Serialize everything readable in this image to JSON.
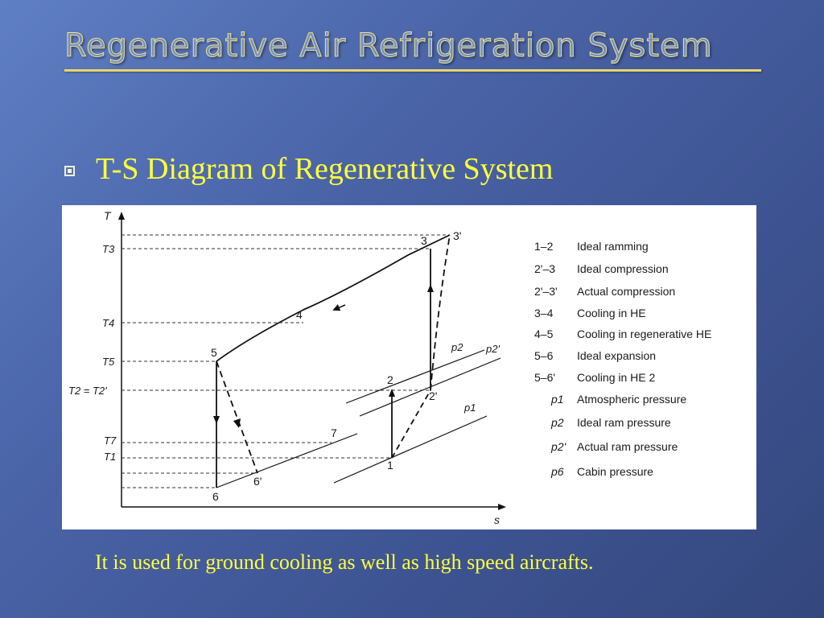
{
  "slide": {
    "title": "Regenerative Air Refrigeration System",
    "bullet": "T-S Diagram of Regenerative System",
    "footer": "It is used for ground cooling as well as high speed aircrafts."
  },
  "colors": {
    "title_text": "#6f8fd0",
    "title_outline": "#f6e27a",
    "accent_yellow": "#ffff3c",
    "figure_bg": "#ffffff"
  },
  "diagram": {
    "axes": {
      "y": "T",
      "x": "s"
    },
    "temp_ticks": [
      "T3",
      "T4",
      "T5",
      "T2 = T2'",
      "T7",
      "T1"
    ],
    "points": [
      "1",
      "2",
      "2'",
      "3",
      "3'",
      "4",
      "5",
      "6",
      "6'",
      "7"
    ],
    "pressure_lines": [
      "p2",
      "p2'",
      "p1"
    ],
    "legend": [
      {
        "key": "1–2",
        "desc": "Ideal ramming"
      },
      {
        "key": "2'–3",
        "desc": "Ideal compression"
      },
      {
        "key": "2'–3'",
        "desc": "Actual compression"
      },
      {
        "key": "3–4",
        "desc": "Cooling in HE"
      },
      {
        "key": "4–5",
        "desc": "Cooling in regenerative HE"
      },
      {
        "key": "5–6",
        "desc": "Ideal expansion"
      },
      {
        "key": "5–6'",
        "desc": "Cooling in HE 2"
      },
      {
        "key": "p1",
        "desc": "Atmospheric pressure"
      },
      {
        "key": "p2",
        "desc": "Ideal ram pressure"
      },
      {
        "key": "p2'",
        "desc": "Actual ram pressure"
      },
      {
        "key": "p6",
        "desc": "Cabin pressure"
      }
    ]
  }
}
